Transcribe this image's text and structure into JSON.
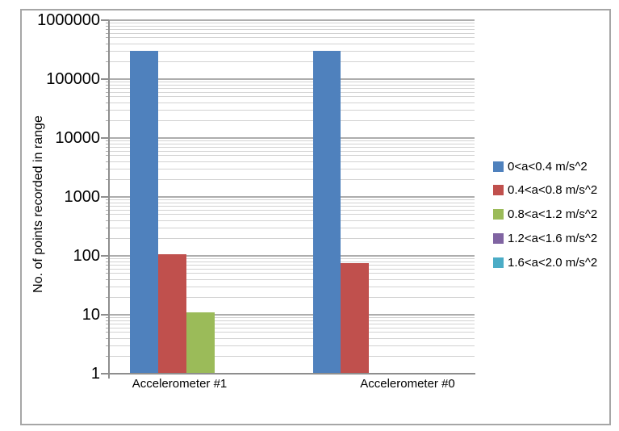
{
  "chart_data": {
    "type": "bar",
    "y_scale": "log",
    "title": "",
    "xlabel": "",
    "ylabel": "No. of points recorded in range",
    "ylim": [
      1,
      1000000
    ],
    "y_tick_labels": [
      "1",
      "10",
      "100",
      "1000",
      "10000",
      "100000",
      "1000000"
    ],
    "grid": "horizontal major + log minor gridlines",
    "legend_position": "right-middle",
    "categories": [
      "Accelerometer #1",
      "Accelerometer #0"
    ],
    "series": [
      {
        "name": "0<a<0.4 m/s^2",
        "color": "#4F81BD",
        "values": [
          300000,
          300000
        ]
      },
      {
        "name": "0.4<a<0.8 m/s^2",
        "color": "#C0504D",
        "values": [
          105,
          75
        ]
      },
      {
        "name": "0.8<a<1.2 m/s^2",
        "color": "#9BBB59",
        "values": [
          11,
          0
        ]
      },
      {
        "name": "1.2<a<1.6 m/s^2",
        "color": "#8064A2",
        "values": [
          0,
          0
        ]
      },
      {
        "name": "1.6<a<2.0 m/s^2",
        "color": "#4BACC6",
        "values": [
          0,
          0
        ]
      }
    ]
  },
  "colors": {
    "background": "#FFFFFF",
    "frame_border": "#A6A6A6",
    "axis_line": "#8E8E8E",
    "major_gridline": "#ADADAD",
    "minor_gridline": "#D2D2D2",
    "text": "#000000"
  }
}
